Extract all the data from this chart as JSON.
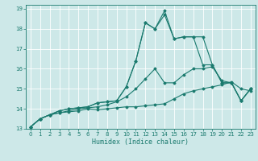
{
  "xlabel": "Humidex (Indice chaleur)",
  "ylabel": "",
  "xlim": [
    -0.5,
    23.5
  ],
  "ylim": [
    13,
    19.2
  ],
  "yticks": [
    13,
    14,
    15,
    16,
    17,
    18,
    19
  ],
  "xticks": [
    0,
    1,
    2,
    3,
    4,
    5,
    6,
    7,
    8,
    9,
    10,
    11,
    12,
    13,
    14,
    15,
    16,
    17,
    18,
    19,
    20,
    21,
    22,
    23
  ],
  "background_color": "#cde8e8",
  "grid_color": "#b0d8d8",
  "line_color": "#1a7a6e",
  "series": [
    {
      "x": [
        0,
        1,
        2,
        3,
        4,
        5,
        6,
        7,
        8,
        9,
        10,
        11,
        12,
        13,
        14,
        15,
        16,
        17,
        18,
        19,
        20,
        21,
        22,
        23
      ],
      "y": [
        13.1,
        13.5,
        13.7,
        13.8,
        13.85,
        13.9,
        14.0,
        13.95,
        14.0,
        14.05,
        14.1,
        14.1,
        14.15,
        14.2,
        14.25,
        14.5,
        14.75,
        14.9,
        15.0,
        15.1,
        15.2,
        15.35,
        15.0,
        14.9
      ]
    },
    {
      "x": [
        0,
        1,
        2,
        3,
        4,
        5,
        6,
        7,
        8,
        9,
        10,
        11,
        12,
        13,
        14,
        15,
        16,
        17,
        18,
        19,
        20,
        21,
        22,
        23
      ],
      "y": [
        13.1,
        13.5,
        13.7,
        13.8,
        13.9,
        14.0,
        14.05,
        14.1,
        14.2,
        14.35,
        14.6,
        15.0,
        15.5,
        16.0,
        15.3,
        15.3,
        15.7,
        16.0,
        16.0,
        16.1,
        15.4,
        15.3,
        14.4,
        15.0
      ]
    },
    {
      "x": [
        0,
        1,
        2,
        3,
        4,
        5,
        6,
        7,
        8,
        9,
        10,
        11,
        12,
        13,
        14,
        15,
        16,
        17,
        18,
        19,
        20,
        21,
        22,
        23
      ],
      "y": [
        13.1,
        13.5,
        13.7,
        13.9,
        14.0,
        14.05,
        14.1,
        14.3,
        14.35,
        14.4,
        15.1,
        16.4,
        18.3,
        18.0,
        18.7,
        17.5,
        17.6,
        17.6,
        16.2,
        16.2,
        15.3,
        15.3,
        14.4,
        15.0
      ]
    },
    {
      "x": [
        0,
        1,
        2,
        3,
        4,
        5,
        6,
        7,
        8,
        9,
        10,
        11,
        12,
        13,
        14,
        15,
        16,
        17,
        18,
        19,
        20,
        21,
        22,
        23
      ],
      "y": [
        13.1,
        13.5,
        13.7,
        13.9,
        14.0,
        14.05,
        14.1,
        14.3,
        14.35,
        14.4,
        15.1,
        16.4,
        18.3,
        18.0,
        18.9,
        17.5,
        17.6,
        17.6,
        17.6,
        16.2,
        15.3,
        15.3,
        14.4,
        15.0
      ]
    }
  ]
}
